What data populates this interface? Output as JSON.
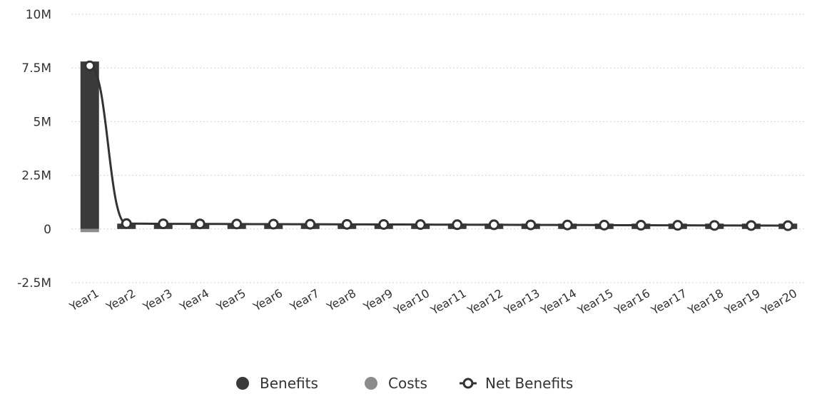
{
  "chart_data": {
    "type": "bar",
    "title": "",
    "xlabel": "",
    "ylabel": "",
    "ylim": [
      -2500000,
      10000000
    ],
    "y_ticks": [
      {
        "value": 10000000,
        "label": "10M"
      },
      {
        "value": 7500000,
        "label": "7.5M"
      },
      {
        "value": 5000000,
        "label": "5M"
      },
      {
        "value": 2500000,
        "label": "2.5M"
      },
      {
        "value": 0,
        "label": "0"
      },
      {
        "value": -2500000,
        "label": "-2.5M"
      }
    ],
    "grid": true,
    "legend_position": "bottom",
    "categories": [
      "Year1",
      "Year2",
      "Year3",
      "Year4",
      "Year5",
      "Year6",
      "Year7",
      "Year8",
      "Year9",
      "Year10",
      "Year11",
      "Year12",
      "Year13",
      "Year14",
      "Year15",
      "Year16",
      "Year17",
      "Year18",
      "Year19",
      "Year20"
    ],
    "series": [
      {
        "name": "Benefits",
        "kind": "bar",
        "color": "#3a3a3a",
        "values": [
          7800000,
          250000,
          250000,
          250000,
          250000,
          250000,
          250000,
          250000,
          250000,
          250000,
          250000,
          250000,
          250000,
          250000,
          250000,
          250000,
          250000,
          250000,
          250000,
          250000
        ]
      },
      {
        "name": "Costs",
        "kind": "bar",
        "color": "#8c8c8c",
        "values": [
          -150000,
          0,
          0,
          0,
          0,
          0,
          0,
          0,
          0,
          0,
          0,
          0,
          0,
          0,
          0,
          0,
          0,
          0,
          0,
          0
        ]
      },
      {
        "name": "Net Benefits",
        "kind": "line",
        "color": "#333333",
        "values": [
          7600000,
          250000,
          240000,
          235000,
          230000,
          225000,
          220000,
          215000,
          210000,
          205000,
          200000,
          195000,
          190000,
          185000,
          180000,
          175000,
          170000,
          165000,
          160000,
          155000
        ]
      }
    ]
  }
}
